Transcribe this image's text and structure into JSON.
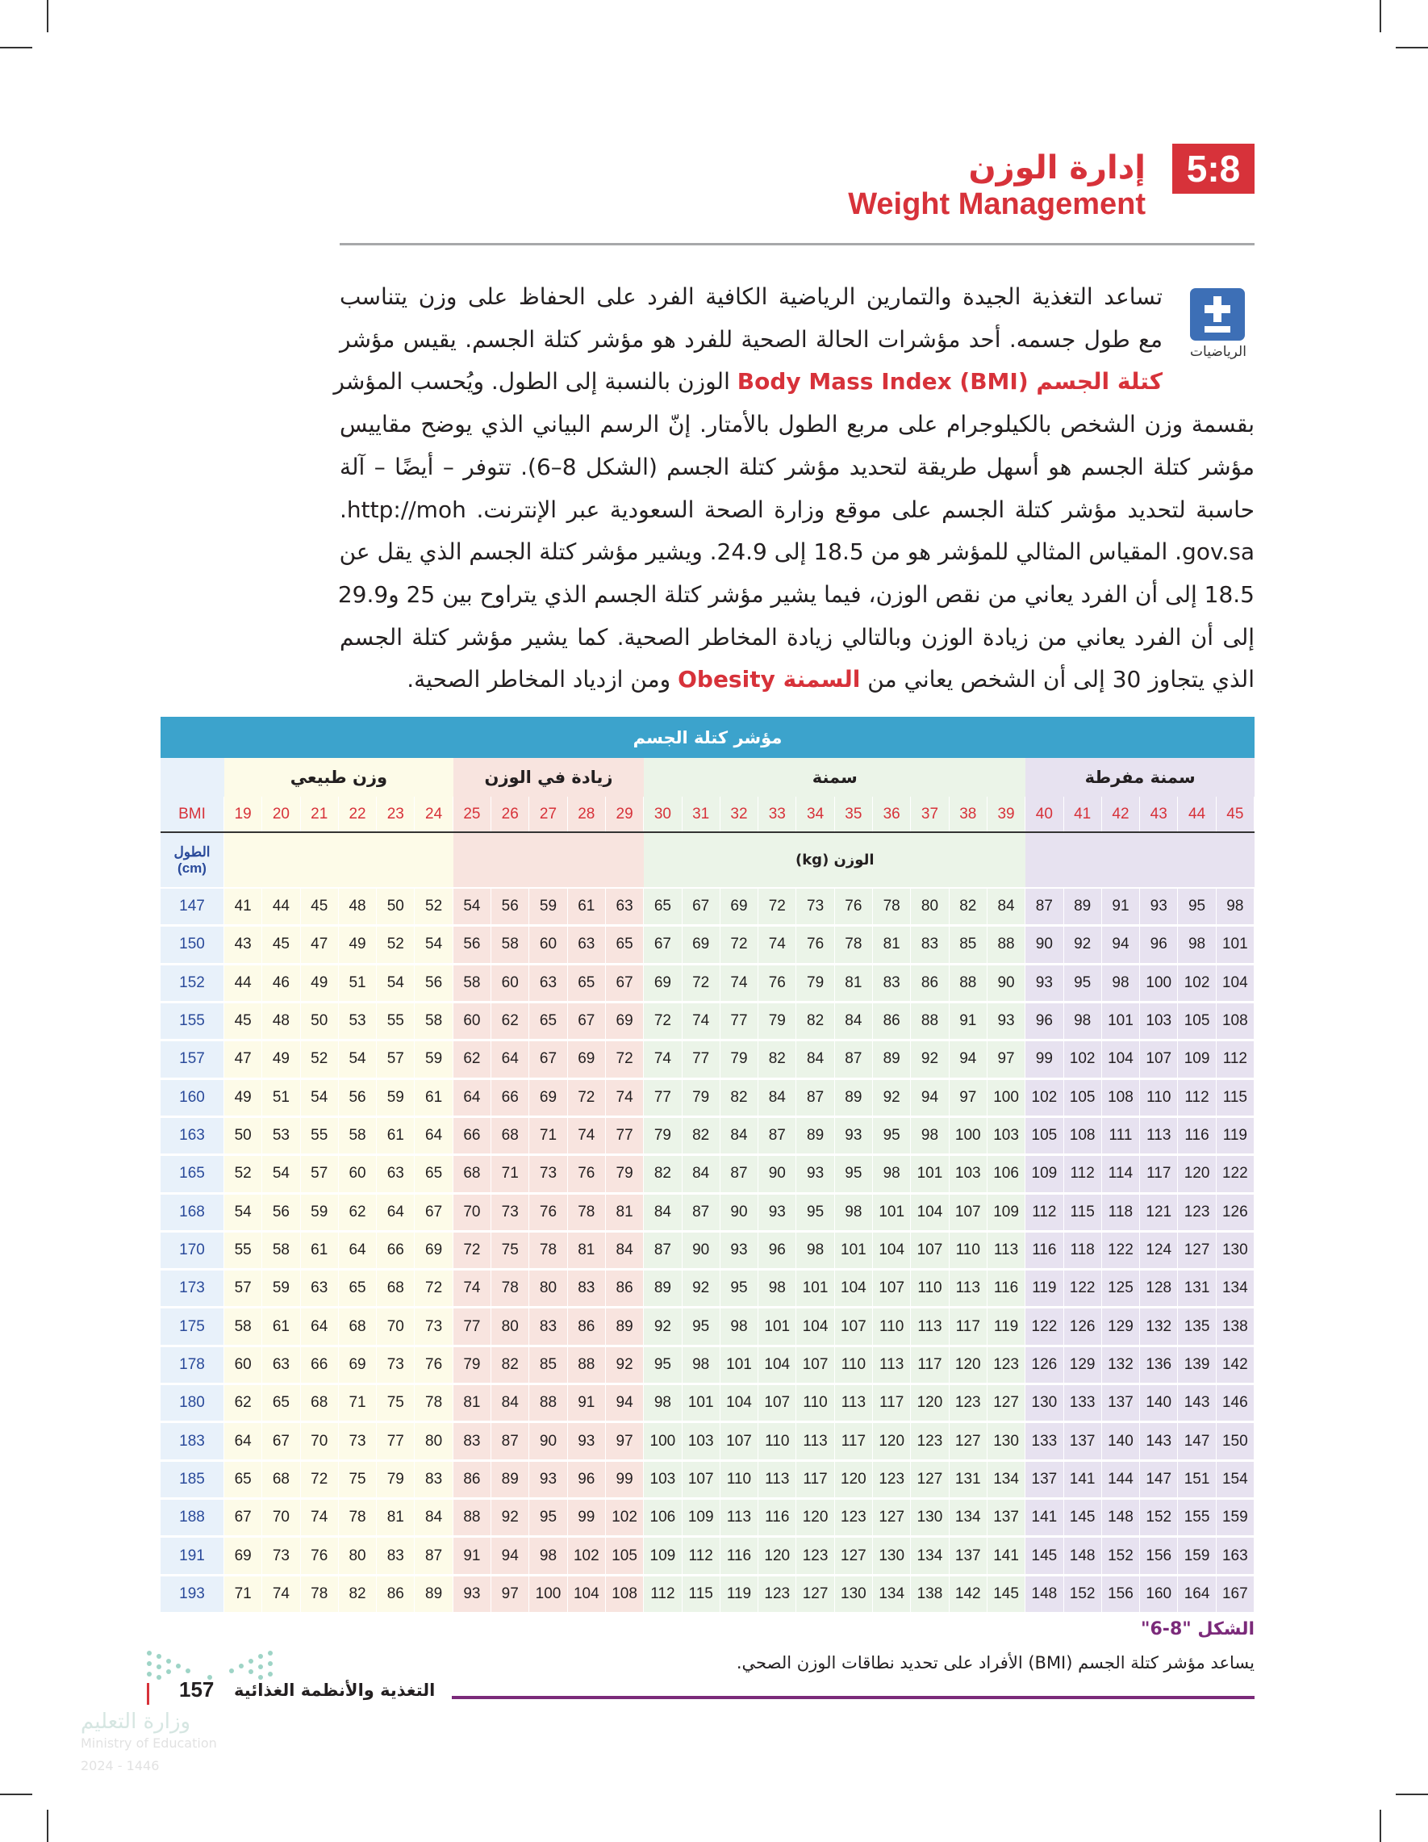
{
  "header": {
    "section_number": "5:8",
    "title_ar": "إدارة الوزن",
    "title_en": "Weight Management"
  },
  "sidebar_icon": {
    "icon": "plus-minus-icon",
    "label": "الرياضيات",
    "color": "#3d6fb6"
  },
  "paragraph": [
    [
      {
        "t": "تساعد التغذية الجيدة والتمارين الرياضية الكافية الفرد على الحفاظ على وزن يتناسب"
      }
    ],
    [
      {
        "t": "مع طول جسمه. أحد مؤشرات الحالة الصحية للفرد هو مؤشر كتلة الجسم. يقيس مؤشر"
      }
    ],
    [
      {
        "t": "كتلة الجسم Body Mass Index (BMI)",
        "hl": true
      },
      {
        "t": " الوزن بالنسبة إلى الطول. ويُحسب المؤشر"
      }
    ],
    [
      {
        "t": "بقسمة وزن الشخص بالكيلوجرام على مربع الطول بالأمتار. إنّ الرسم البياني الذي يوضح مقاييس"
      }
    ],
    [
      {
        "t": "مؤشر كتلة الجسم هو أسهل طريقة لتحديد مؤشر كتلة الجسم (الشكل 8–6). تتوفر – أيضًا – آلة"
      }
    ],
    [
      {
        "t": "حاسبة لتحديد مؤشر كتلة الجسم على موقع وزارة الصحة السعودية عبر الإنترنت. http://moh."
      }
    ],
    [
      {
        "t": "gov.sa. المقياس المثالي للمؤشر هو من 18.5 إلى 24.9. ويشير مؤشر كتلة الجسم الذي يقل عن"
      }
    ],
    [
      {
        "t": "18.5 إلى أن الفرد يعاني من نقص الوزن، فيما يشير مؤشر كتلة الجسم الذي يتراوح بين 25 و29.9"
      }
    ],
    [
      {
        "t": "إلى أن الفرد يعاني من زيادة الوزن وبالتالي زيادة المخاطر الصحية. كما يشير مؤشر كتلة الجسم"
      }
    ],
    [
      {
        "t": "الذي يتجاوز 30 إلى أن الشخص يعاني من "
      },
      {
        "t": "السمنة Obesity",
        "hl": true
      },
      {
        "t": " ومن ازدياد المخاطر الصحية."
      }
    ]
  ],
  "table": {
    "title": "مؤشر كتلة الجسم",
    "bmi_label": "BMI",
    "height_label": "الطول",
    "height_unit": "(cm)",
    "weight_label": "الوزن (kg)",
    "categories": [
      {
        "label": "وزن طبيعي",
        "span": 6,
        "color": "#fdfbe8"
      },
      {
        "label": "زيادة في الوزن",
        "span": 5,
        "color": "#f8e4df"
      },
      {
        "label": "سمنة",
        "span": 10,
        "color": "#ebf4e8"
      },
      {
        "label": "سمنة مفرطة",
        "span": 6,
        "color": "#e7e2f0"
      }
    ],
    "header_color": "#3ca3cc",
    "first_col_color": "#e8f1fa",
    "bmi": [
      19,
      20,
      21,
      22,
      23,
      24,
      25,
      26,
      27,
      28,
      29,
      30,
      31,
      32,
      33,
      34,
      35,
      36,
      37,
      38,
      39,
      40,
      41,
      42,
      43,
      44,
      45
    ],
    "rows": [
      {
        "h": 147,
        "w": [
          41,
          44,
          45,
          48,
          50,
          52,
          54,
          56,
          59,
          61,
          63,
          65,
          67,
          69,
          72,
          73,
          76,
          78,
          80,
          82,
          84,
          87,
          89,
          91,
          93,
          95,
          98
        ]
      },
      {
        "h": 150,
        "w": [
          43,
          45,
          47,
          49,
          52,
          54,
          56,
          58,
          60,
          63,
          65,
          67,
          69,
          72,
          74,
          76,
          78,
          81,
          83,
          85,
          88,
          90,
          92,
          94,
          96,
          98,
          101
        ]
      },
      {
        "h": 152,
        "w": [
          44,
          46,
          49,
          51,
          54,
          56,
          58,
          60,
          63,
          65,
          67,
          69,
          72,
          74,
          76,
          79,
          81,
          83,
          86,
          88,
          90,
          93,
          95,
          98,
          100,
          102,
          104
        ]
      },
      {
        "h": 155,
        "w": [
          45,
          48,
          50,
          53,
          55,
          58,
          60,
          62,
          65,
          67,
          69,
          72,
          74,
          77,
          79,
          82,
          84,
          86,
          88,
          91,
          93,
          96,
          98,
          101,
          103,
          105,
          108
        ]
      },
      {
        "h": 157,
        "w": [
          47,
          49,
          52,
          54,
          57,
          59,
          62,
          64,
          67,
          69,
          72,
          74,
          77,
          79,
          82,
          84,
          87,
          89,
          92,
          94,
          97,
          99,
          102,
          104,
          107,
          109,
          112
        ]
      },
      {
        "h": 160,
        "w": [
          49,
          51,
          54,
          56,
          59,
          61,
          64,
          66,
          69,
          72,
          74,
          77,
          79,
          82,
          84,
          87,
          89,
          92,
          94,
          97,
          100,
          102,
          105,
          108,
          110,
          112,
          115
        ]
      },
      {
        "h": 163,
        "w": [
          50,
          53,
          55,
          58,
          61,
          64,
          66,
          68,
          71,
          74,
          77,
          79,
          82,
          84,
          87,
          89,
          93,
          95,
          98,
          100,
          103,
          105,
          108,
          111,
          113,
          116,
          119
        ]
      },
      {
        "h": 165,
        "w": [
          52,
          54,
          57,
          60,
          63,
          65,
          68,
          71,
          73,
          76,
          79,
          82,
          84,
          87,
          90,
          93,
          95,
          98,
          101,
          103,
          106,
          109,
          112,
          114,
          117,
          120,
          122
        ]
      },
      {
        "h": 168,
        "w": [
          54,
          56,
          59,
          62,
          64,
          67,
          70,
          73,
          76,
          78,
          81,
          84,
          87,
          90,
          93,
          95,
          98,
          101,
          104,
          107,
          109,
          112,
          115,
          118,
          121,
          123,
          126
        ]
      },
      {
        "h": 170,
        "w": [
          55,
          58,
          61,
          64,
          66,
          69,
          72,
          75,
          78,
          81,
          84,
          87,
          90,
          93,
          96,
          98,
          101,
          104,
          107,
          110,
          113,
          116,
          118,
          122,
          124,
          127,
          130
        ]
      },
      {
        "h": 173,
        "w": [
          57,
          59,
          63,
          65,
          68,
          72,
          74,
          78,
          80,
          83,
          86,
          89,
          92,
          95,
          98,
          101,
          104,
          107,
          110,
          113,
          116,
          119,
          122,
          125,
          128,
          131,
          134
        ]
      },
      {
        "h": 175,
        "w": [
          58,
          61,
          64,
          68,
          70,
          73,
          77,
          80,
          83,
          86,
          89,
          92,
          95,
          98,
          101,
          104,
          107,
          110,
          113,
          117,
          119,
          122,
          126,
          129,
          132,
          135,
          138
        ]
      },
      {
        "h": 178,
        "w": [
          60,
          63,
          66,
          69,
          73,
          76,
          79,
          82,
          85,
          88,
          92,
          95,
          98,
          101,
          104,
          107,
          110,
          113,
          117,
          120,
          123,
          126,
          129,
          132,
          136,
          139,
          142
        ]
      },
      {
        "h": 180,
        "w": [
          62,
          65,
          68,
          71,
          75,
          78,
          81,
          84,
          88,
          91,
          94,
          98,
          101,
          104,
          107,
          110,
          113,
          117,
          120,
          123,
          127,
          130,
          133,
          137,
          140,
          143,
          146
        ]
      },
      {
        "h": 183,
        "w": [
          64,
          67,
          70,
          73,
          77,
          80,
          83,
          87,
          90,
          93,
          97,
          100,
          103,
          107,
          110,
          113,
          117,
          120,
          123,
          127,
          130,
          133,
          137,
          140,
          143,
          147,
          150
        ]
      },
      {
        "h": 185,
        "w": [
          65,
          68,
          72,
          75,
          79,
          83,
          86,
          89,
          93,
          96,
          99,
          103,
          107,
          110,
          113,
          117,
          120,
          123,
          127,
          131,
          134,
          137,
          141,
          144,
          147,
          151,
          154
        ]
      },
      {
        "h": 188,
        "w": [
          67,
          70,
          74,
          78,
          81,
          84,
          88,
          92,
          95,
          99,
          102,
          106,
          109,
          113,
          116,
          120,
          123,
          127,
          130,
          134,
          137,
          141,
          145,
          148,
          152,
          155,
          159
        ]
      },
      {
        "h": 191,
        "w": [
          69,
          73,
          76,
          80,
          83,
          87,
          91,
          94,
          98,
          102,
          105,
          109,
          112,
          116,
          120,
          123,
          127,
          130,
          134,
          137,
          141,
          145,
          148,
          152,
          156,
          159,
          163
        ]
      },
      {
        "h": 193,
        "w": [
          71,
          74,
          78,
          82,
          86,
          89,
          93,
          97,
          100,
          104,
          108,
          112,
          115,
          119,
          123,
          127,
          130,
          134,
          138,
          142,
          145,
          148,
          152,
          156,
          160,
          164,
          167
        ]
      }
    ]
  },
  "caption": {
    "title": "الشكل \"8-6\"",
    "text": "يساعد مؤشر كتلة الجسم (BMI) الأفراد على تحديد نطاقات الوزن الصحي."
  },
  "footer": {
    "book_title": "التغذية والأنظمة الغذائية",
    "page_number": "157",
    "ministry_ar": "وزارة التعليم",
    "ministry_en": "Ministry of Education",
    "year": "2024 - 1446"
  }
}
